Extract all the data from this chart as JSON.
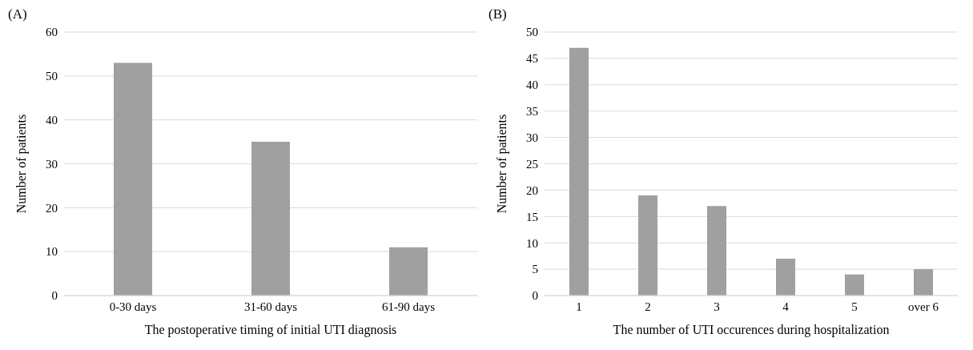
{
  "chart_data": [
    {
      "type": "bar",
      "title": "(A)",
      "xlabel": "The postoperative timing of initial UTI diagnosis",
      "ylabel": "Number of patients",
      "categories": [
        "0-30 days",
        "31-60 days",
        "61-90 days"
      ],
      "series": [
        {
          "color": "#a0a0a0",
          "values": [
            53,
            35,
            11
          ]
        }
      ],
      "ylim": [
        0,
        60
      ],
      "yticks": [
        0,
        10,
        20,
        30,
        40,
        50,
        60
      ],
      "grid": "y",
      "legend": false
    },
    {
      "type": "bar",
      "title": "(B)",
      "xlabel": "The number of UTI occurences during hospitalization",
      "ylabel": "Number of patients",
      "categories": [
        "1",
        "2",
        "3",
        "4",
        "5",
        "over 6"
      ],
      "series": [
        {
          "color": "#a0a0a0",
          "values": [
            47,
            19,
            17,
            7,
            4,
            5
          ]
        }
      ],
      "ylim": [
        0,
        50
      ],
      "yticks": [
        0,
        5,
        10,
        15,
        20,
        25,
        30,
        35,
        40,
        45,
        50
      ],
      "grid": "y",
      "legend": false
    }
  ]
}
